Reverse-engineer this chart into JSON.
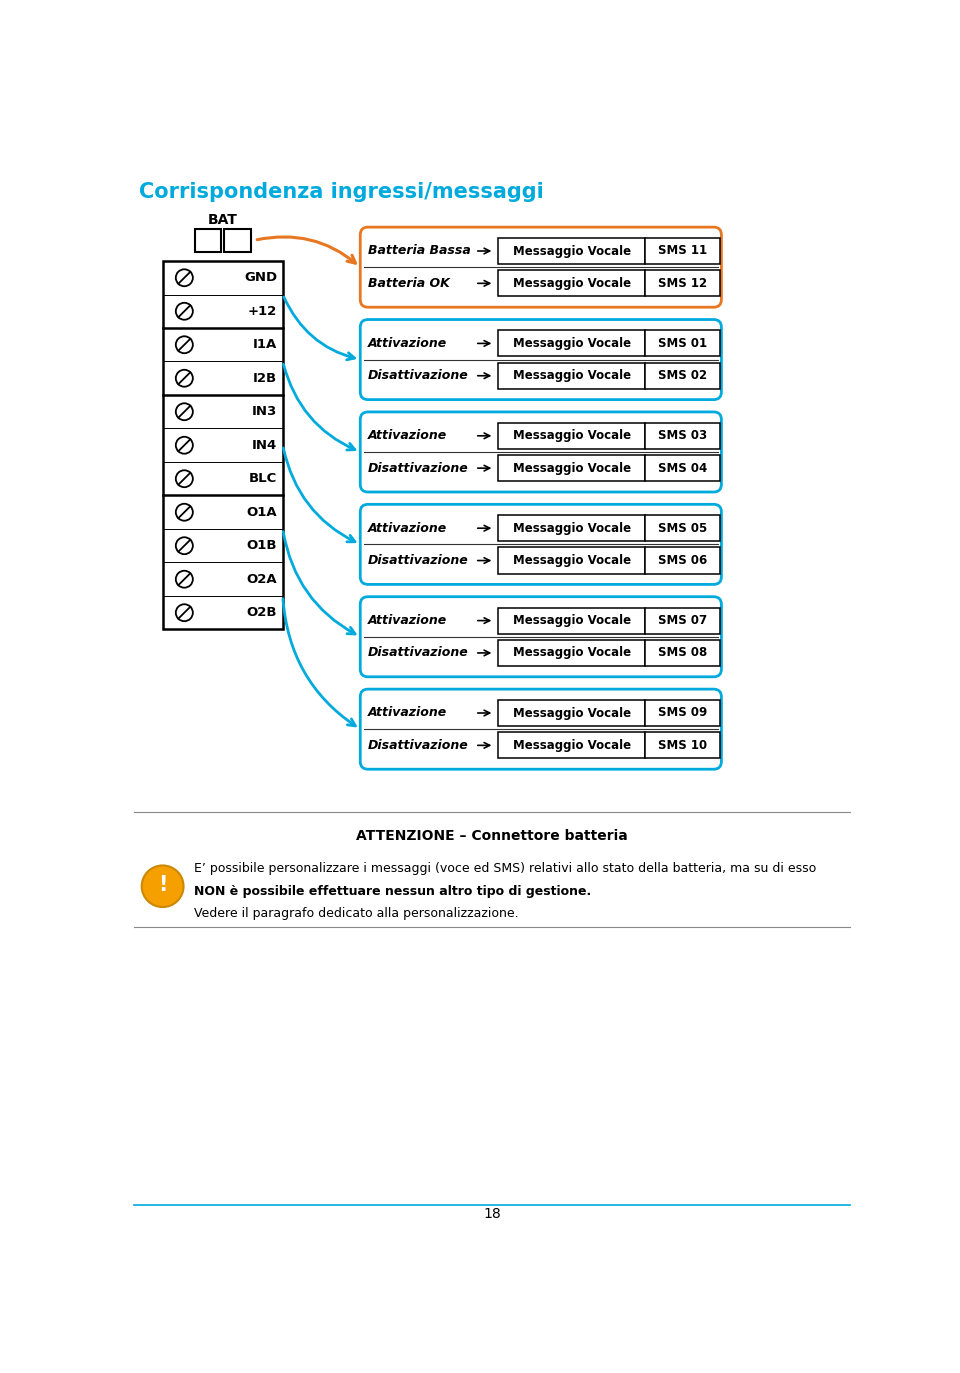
{
  "title": "Corrispondenza ingressi/messaggi",
  "title_color": "#00AADD",
  "title_fontsize": 15,
  "background_color": "#ffffff",
  "page_number": "18",
  "bat_label": "BAT",
  "left_labels": [
    "GND",
    "+12",
    "I1A",
    "I2B",
    "IN3",
    "IN4",
    "BLC",
    "O1A",
    "O1B",
    "O2A",
    "O2B"
  ],
  "orange_color": "#E87722",
  "blue_color": "#00AADD",
  "groups": [
    {
      "color": "#E87722",
      "rows": [
        {
          "left": "Batteria Bassa",
          "mid": "Messaggio Vocale",
          "right": "SMS 11"
        },
        {
          "left": "Batteria OK",
          "mid": "Messaggio Vocale",
          "right": "SMS 12"
        }
      ]
    },
    {
      "color": "#00AADD",
      "rows": [
        {
          "left": "Attivazione",
          "mid": "Messaggio Vocale",
          "right": "SMS 01"
        },
        {
          "left": "Disattivazione",
          "mid": "Messaggio Vocale",
          "right": "SMS 02"
        }
      ]
    },
    {
      "color": "#00AADD",
      "rows": [
        {
          "left": "Attivazione",
          "mid": "Messaggio Vocale",
          "right": "SMS 03"
        },
        {
          "left": "Disattivazione",
          "mid": "Messaggio Vocale",
          "right": "SMS 04"
        }
      ]
    },
    {
      "color": "#00AADD",
      "rows": [
        {
          "left": "Attivazione",
          "mid": "Messaggio Vocale",
          "right": "SMS 05"
        },
        {
          "left": "Disattivazione",
          "mid": "Messaggio Vocale",
          "right": "SMS 06"
        }
      ]
    },
    {
      "color": "#00AADD",
      "rows": [
        {
          "left": "Attivazione",
          "mid": "Messaggio Vocale",
          "right": "SMS 07"
        },
        {
          "left": "Disattivazione",
          "mid": "Messaggio Vocale",
          "right": "SMS 08"
        }
      ]
    },
    {
      "color": "#00AADD",
      "rows": [
        {
          "left": "Attivazione",
          "mid": "Messaggio Vocale",
          "right": "SMS 09"
        },
        {
          "left": "Disattivazione",
          "mid": "Messaggio Vocale",
          "right": "SMS 10"
        }
      ]
    }
  ],
  "attention_title": "ATTENZIONE – Connettore batteria",
  "attention_text1": "E’ possibile personalizzare i messaggi (voce ed SMS) relativi allo stato della batteria, ma su di esso",
  "attention_text2": "NON è possibile effettuare nessun altro tipo di gestione.",
  "attention_text3": "Vedere il paragrafo dedicato alla personalizzazione."
}
